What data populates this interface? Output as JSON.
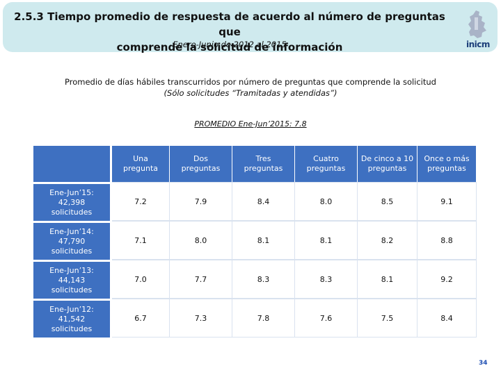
{
  "header": {
    "title_line1": "2.5.3 Tiempo promedio de respuesta de acuerdo al número de preguntas que",
    "title_line2": "comprende la solicitud de información",
    "period": "Enero-Junio de 2012 al 2015",
    "logo_text": "inicm"
  },
  "subtitle": {
    "line1": "Promedio de días hábiles transcurridos por número de preguntas que comprende la solicitud",
    "line2": "(Sólo solicitudes “Tramitadas y atendidas”)"
  },
  "promedio": "PROMEDIO Ene-Jun’2015: 7.8",
  "table": {
    "columns": [
      [
        "Una",
        "pregunta"
      ],
      [
        "Dos",
        "preguntas"
      ],
      [
        "Tres",
        "preguntas"
      ],
      [
        "Cuatro",
        "preguntas"
      ],
      [
        "De cinco a 10",
        "preguntas"
      ],
      [
        "Once o más",
        "preguntas"
      ]
    ],
    "rows": [
      {
        "label": [
          "Ene-Jun’15:",
          "42,398",
          "solicitudes"
        ],
        "values": [
          "7.2",
          "7.9",
          "8.4",
          "8.0",
          "8.5",
          "9.1"
        ]
      },
      {
        "label": [
          "Ene-Jun’14:",
          "47,790",
          "solicitudes"
        ],
        "values": [
          "7.1",
          "8.0",
          "8.1",
          "8.1",
          "8.2",
          "8.8"
        ]
      },
      {
        "label": [
          "Ene-Jun’13:",
          "44,143",
          "solicitudes"
        ],
        "values": [
          "7.0",
          "7.7",
          "8.3",
          "8.3",
          "8.1",
          "9.2"
        ]
      },
      {
        "label": [
          "Ene-Jun’12:",
          "41,542",
          "solicitudes"
        ],
        "values": [
          "6.7",
          "7.3",
          "7.8",
          "7.6",
          "7.5",
          "8.4"
        ]
      }
    ]
  },
  "page_number": "34",
  "colors": {
    "banner": "#cfeaee",
    "table_header": "#3e70c1",
    "page_number": "#1f4fb3"
  }
}
